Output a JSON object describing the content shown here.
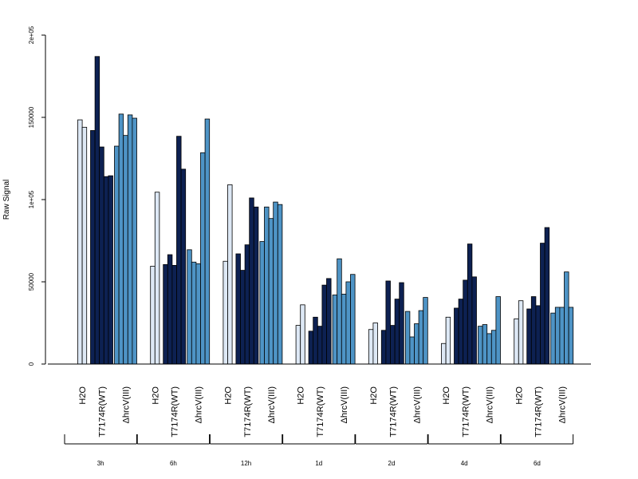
{
  "chart_data": {
    "type": "bar",
    "ylabel": "Raw Signal",
    "ylim": [
      0,
      200000
    ],
    "y_ticks": [
      {
        "value": 0,
        "label": "0"
      },
      {
        "value": 50000,
        "label": "50000"
      },
      {
        "value": 100000,
        "label": "1e+05"
      },
      {
        "value": 150000,
        "label": "150000"
      },
      {
        "value": 200000,
        "label": "2e+05"
      }
    ],
    "treatments": [
      {
        "label": "H2O",
        "color": "#dde8f5"
      },
      {
        "label": "T7174R(WT)",
        "color": "#0d2152"
      },
      {
        "label": "ΔhrcV(III)",
        "color": "#4e94c6"
      }
    ],
    "timepoints": [
      {
        "label": "3h",
        "groups": [
          [
            148500,
            144000
          ],
          [
            142000,
            187000,
            132000,
            114000,
            114500
          ],
          [
            132500,
            152000,
            139000,
            151500,
            149500
          ]
        ]
      },
      {
        "label": "6h",
        "groups": [
          [
            59500,
            104500
          ],
          [
            60500,
            66500,
            60000,
            138500,
            118500
          ],
          [
            69500,
            62000,
            61000,
            128500,
            149000
          ]
        ]
      },
      {
        "label": "12h",
        "groups": [
          [
            62500,
            109000
          ],
          [
            67000,
            57000,
            72500,
            101000,
            95500
          ],
          [
            74500,
            95500,
            88500,
            98500,
            97000
          ]
        ]
      },
      {
        "label": "1d",
        "groups": [
          [
            23500,
            36000
          ],
          [
            20000,
            28500,
            23000,
            48000,
            52000
          ],
          [
            42000,
            64000,
            42500,
            50000,
            54500
          ]
        ]
      },
      {
        "label": "2d",
        "groups": [
          [
            21000,
            25000
          ],
          [
            20500,
            50500,
            23500,
            39500,
            49500
          ],
          [
            32000,
            16500,
            24500,
            32500,
            40500
          ]
        ]
      },
      {
        "label": "4d",
        "groups": [
          [
            12500,
            28500
          ],
          [
            34000,
            39500,
            51000,
            73000,
            53000
          ],
          [
            23000,
            24000,
            18500,
            20500,
            41000
          ]
        ]
      },
      {
        "label": "6d",
        "groups": [
          [
            27500,
            38500
          ],
          [
            33500,
            41000,
            35500,
            73500,
            83000
          ],
          [
            31000,
            34500,
            34500,
            56000,
            34500
          ]
        ]
      }
    ]
  }
}
